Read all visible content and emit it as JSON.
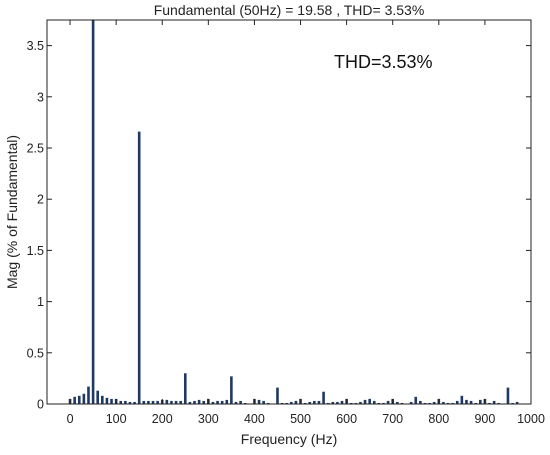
{
  "chart_data": {
    "type": "bar",
    "title": "Fundamental (50Hz)  = 19.58 ,  THD= 3.53%",
    "annotation": "THD=3.53%",
    "xlabel": "Frequency (Hz)",
    "ylabel": "Mag (% of Fundamental)",
    "xlim": [
      -50,
      1000
    ],
    "ylim": [
      0,
      3.75
    ],
    "xticks": [
      0,
      100,
      200,
      300,
      400,
      500,
      600,
      700,
      800,
      900,
      1000
    ],
    "yticks": [
      0,
      0.5,
      1,
      1.5,
      2,
      2.5,
      3,
      3.5
    ],
    "xtick_labels": [
      "0",
      "100",
      "200",
      "300",
      "400",
      "500",
      "600",
      "700",
      "800",
      "900",
      "1000"
    ],
    "ytick_labels": [
      "0",
      "0.5",
      "1",
      "1.5",
      "2",
      "2.5",
      "3",
      "3.5"
    ],
    "bar_color": "#1f3864",
    "grid": false,
    "x": [
      0,
      10,
      20,
      30,
      40,
      50,
      60,
      70,
      80,
      90,
      100,
      110,
      120,
      130,
      140,
      150,
      160,
      170,
      180,
      190,
      200,
      210,
      220,
      230,
      240,
      250,
      260,
      270,
      280,
      290,
      300,
      310,
      320,
      330,
      340,
      350,
      360,
      370,
      380,
      390,
      400,
      410,
      420,
      430,
      440,
      450,
      460,
      470,
      480,
      490,
      500,
      510,
      520,
      530,
      540,
      550,
      560,
      570,
      580,
      590,
      600,
      610,
      620,
      630,
      640,
      650,
      660,
      670,
      680,
      690,
      700,
      710,
      720,
      730,
      740,
      750,
      760,
      770,
      780,
      790,
      800,
      810,
      820,
      830,
      840,
      850,
      860,
      870,
      880,
      890,
      900,
      910,
      920,
      930,
      940,
      950,
      960,
      970
    ],
    "values": [
      0.05,
      0.07,
      0.08,
      0.1,
      0.17,
      3.75,
      0.13,
      0.08,
      0.06,
      0.05,
      0.05,
      0.03,
      0.03,
      0.02,
      0.02,
      2.66,
      0.03,
      0.03,
      0.03,
      0.03,
      0.04,
      0.04,
      0.03,
      0.03,
      0.03,
      0.3,
      0.02,
      0.03,
      0.04,
      0.03,
      0.05,
      0.02,
      0.03,
      0.03,
      0.04,
      0.27,
      0.02,
      0.03,
      0.01,
      0.0,
      0.05,
      0.04,
      0.03,
      0.01,
      0.0,
      0.16,
      0.01,
      0.01,
      0.02,
      0.03,
      0.05,
      0.01,
      0.02,
      0.03,
      0.03,
      0.12,
      0.01,
      0.02,
      0.02,
      0.03,
      0.05,
      0.01,
      0.01,
      0.02,
      0.04,
      0.05,
      0.03,
      0.01,
      0.01,
      0.03,
      0.05,
      0.02,
      0.01,
      0.0,
      0.02,
      0.07,
      0.03,
      0.01,
      0.01,
      0.02,
      0.05,
      0.02,
      0.01,
      0.01,
      0.03,
      0.08,
      0.04,
      0.03,
      0.01,
      0.04,
      0.05,
      0.01,
      0.03,
      0.01,
      0.0,
      0.16,
      0.01,
      0.02
    ]
  }
}
